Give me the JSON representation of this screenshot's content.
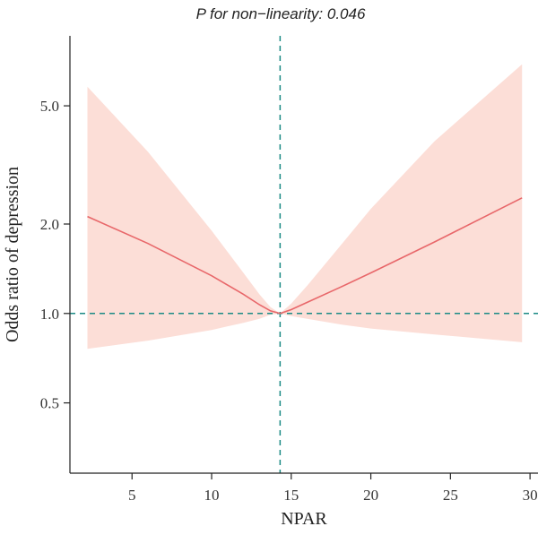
{
  "chart_data": {
    "type": "line",
    "title": "P for non−linearity: 0.046",
    "xlabel": "NPAR",
    "ylabel": "Odds ratio of depression",
    "y_scale": "log",
    "xlim": [
      1.1,
      30.5
    ],
    "ylim": [
      0.29,
      8.6
    ],
    "x_ticks": [
      5,
      10,
      15,
      20,
      25,
      30
    ],
    "x_tick_labels": [
      "5",
      "10",
      "15",
      "20",
      "25",
      "30"
    ],
    "y_ticks": [
      0.5,
      1.0,
      2.0,
      5.0
    ],
    "y_tick_labels": [
      "0.5",
      "1.0",
      "2.0",
      "5.0"
    ],
    "reference_lines": {
      "x": 14.3,
      "y": 1.0,
      "style": "dashed",
      "color": "#1b8a85"
    },
    "series": [
      {
        "type": "line",
        "color": "#e8676a",
        "x": [
          2.2,
          6,
          10,
          12,
          13,
          13.7,
          14.3,
          15,
          16,
          18,
          20,
          24,
          29.5
        ],
        "values": [
          2.12,
          1.72,
          1.34,
          1.16,
          1.07,
          1.02,
          1.0,
          1.03,
          1.09,
          1.22,
          1.37,
          1.74,
          2.45
        ]
      },
      {
        "type": "band",
        "color": "#fcded7",
        "x": [
          2.2,
          6,
          10,
          12,
          13,
          13.7,
          14.3,
          15,
          16,
          18,
          20,
          24,
          29.5
        ],
        "upper": [
          5.8,
          3.5,
          1.9,
          1.37,
          1.16,
          1.05,
          1.0,
          1.08,
          1.24,
          1.67,
          2.25,
          3.8,
          6.9
        ],
        "lower": [
          0.76,
          0.81,
          0.88,
          0.93,
          0.96,
          0.99,
          1.0,
          0.98,
          0.96,
          0.92,
          0.89,
          0.85,
          0.8
        ]
      }
    ]
  }
}
